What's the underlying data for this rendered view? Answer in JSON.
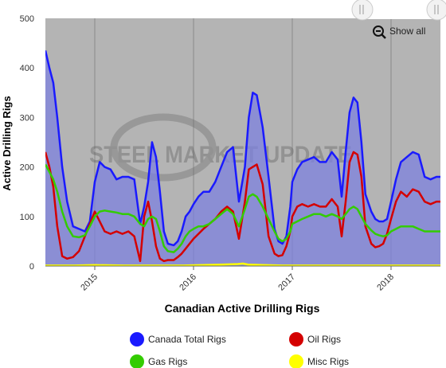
{
  "chart_data": {
    "type": "line",
    "title": "Canadian Active Drilling Rigs",
    "ylabel": "Active Drilling Rigs",
    "ylim": [
      0,
      500
    ],
    "yticks": [
      0,
      100,
      200,
      300,
      400,
      500
    ],
    "xlim": [
      2014.5,
      2018.5
    ],
    "xticks": [
      {
        "value": 2015,
        "label": "2015"
      },
      {
        "value": 2016,
        "label": "2016"
      },
      {
        "value": 2017,
        "label": "2017"
      },
      {
        "value": 2018,
        "label": "2018"
      }
    ],
    "grid": true,
    "legend_position": "bottom",
    "watermark": "STEEL MARKET UPDATE",
    "zoom_button_label": "Show all",
    "series": [
      {
        "name": "Canada Total Rigs",
        "color": "#1a1aff",
        "fill": true,
        "x": [
          2014.5,
          2014.54,
          2014.58,
          2014.62,
          2014.67,
          2014.72,
          2014.78,
          2014.84,
          2014.9,
          2014.95,
          2015.0,
          2015.05,
          2015.1,
          2015.16,
          2015.22,
          2015.28,
          2015.34,
          2015.4,
          2015.46,
          2015.5,
          2015.54,
          2015.58,
          2015.62,
          2015.66,
          2015.7,
          2015.74,
          2015.8,
          2015.84,
          2015.88,
          2015.92,
          2015.96,
          2016.0,
          2016.05,
          2016.1,
          2016.16,
          2016.22,
          2016.28,
          2016.34,
          2016.4,
          2016.46,
          2016.52,
          2016.56,
          2016.6,
          2016.64,
          2016.7,
          2016.76,
          2016.82,
          2016.86,
          2016.9,
          2016.94,
          2016.98,
          2017.0,
          2017.05,
          2017.1,
          2017.16,
          2017.22,
          2017.28,
          2017.34,
          2017.4,
          2017.46,
          2017.5,
          2017.54,
          2017.58,
          2017.62,
          2017.66,
          2017.7,
          2017.74,
          2017.8,
          2017.84,
          2017.88,
          2017.92,
          2017.96,
          2018.0,
          2018.05,
          2018.1,
          2018.16,
          2018.22,
          2018.28,
          2018.34,
          2018.4,
          2018.46,
          2018.5
        ],
        "values": [
          435,
          400,
          370,
          300,
          200,
          130,
          80,
          75,
          70,
          90,
          170,
          210,
          200,
          195,
          175,
          180,
          180,
          175,
          85,
          120,
          170,
          250,
          220,
          150,
          70,
          45,
          42,
          50,
          70,
          100,
          110,
          125,
          140,
          150,
          150,
          170,
          200,
          230,
          240,
          130,
          200,
          300,
          350,
          345,
          280,
          180,
          75,
          50,
          45,
          60,
          120,
          170,
          195,
          210,
          215,
          220,
          210,
          210,
          230,
          215,
          140,
          230,
          310,
          340,
          330,
          250,
          145,
          110,
          95,
          90,
          90,
          95,
          130,
          175,
          210,
          220,
          230,
          225,
          180,
          175,
          180,
          180
        ]
      },
      {
        "name": "Oil Rigs",
        "color": "#d40000",
        "fill": false,
        "x": [
          2014.5,
          2014.54,
          2014.58,
          2014.62,
          2014.67,
          2014.72,
          2014.78,
          2014.84,
          2014.9,
          2014.95,
          2015.0,
          2015.05,
          2015.1,
          2015.16,
          2015.22,
          2015.28,
          2015.34,
          2015.4,
          2015.46,
          2015.5,
          2015.54,
          2015.58,
          2015.62,
          2015.66,
          2015.7,
          2015.74,
          2015.8,
          2015.84,
          2015.88,
          2015.92,
          2015.96,
          2016.0,
          2016.05,
          2016.1,
          2016.16,
          2016.22,
          2016.28,
          2016.34,
          2016.4,
          2016.46,
          2016.52,
          2016.56,
          2016.6,
          2016.64,
          2016.7,
          2016.76,
          2016.82,
          2016.86,
          2016.9,
          2016.94,
          2016.98,
          2017.0,
          2017.05,
          2017.1,
          2017.16,
          2017.22,
          2017.28,
          2017.34,
          2017.4,
          2017.46,
          2017.5,
          2017.54,
          2017.58,
          2017.62,
          2017.66,
          2017.7,
          2017.74,
          2017.8,
          2017.84,
          2017.88,
          2017.92,
          2017.96,
          2018.0,
          2018.05,
          2018.1,
          2018.16,
          2018.22,
          2018.28,
          2018.34,
          2018.4,
          2018.46,
          2018.5
        ],
        "values": [
          230,
          200,
          160,
          80,
          20,
          15,
          18,
          30,
          60,
          85,
          110,
          90,
          70,
          65,
          70,
          65,
          70,
          60,
          10,
          100,
          130,
          90,
          40,
          15,
          10,
          12,
          12,
          18,
          25,
          35,
          45,
          55,
          65,
          75,
          85,
          95,
          110,
          120,
          110,
          55,
          130,
          195,
          200,
          205,
          165,
          60,
          25,
          20,
          22,
          40,
          70,
          100,
          120,
          125,
          120,
          125,
          120,
          120,
          135,
          120,
          60,
          130,
          210,
          230,
          225,
          180,
          80,
          45,
          38,
          40,
          45,
          65,
          95,
          130,
          150,
          140,
          155,
          150,
          130,
          125,
          130,
          130
        ]
      },
      {
        "name": "Gas Rigs",
        "color": "#33cc00",
        "fill": false,
        "x": [
          2014.5,
          2014.54,
          2014.58,
          2014.62,
          2014.67,
          2014.72,
          2014.78,
          2014.84,
          2014.9,
          2014.95,
          2015.0,
          2015.05,
          2015.1,
          2015.16,
          2015.22,
          2015.28,
          2015.34,
          2015.4,
          2015.46,
          2015.5,
          2015.54,
          2015.58,
          2015.62,
          2015.66,
          2015.7,
          2015.74,
          2015.8,
          2015.84,
          2015.88,
          2015.92,
          2015.96,
          2016.0,
          2016.05,
          2016.1,
          2016.16,
          2016.22,
          2016.28,
          2016.34,
          2016.4,
          2016.46,
          2016.52,
          2016.56,
          2016.6,
          2016.64,
          2016.7,
          2016.76,
          2016.82,
          2016.86,
          2016.9,
          2016.94,
          2016.98,
          2017.0,
          2017.05,
          2017.1,
          2017.16,
          2017.22,
          2017.28,
          2017.34,
          2017.4,
          2017.46,
          2017.5,
          2017.54,
          2017.58,
          2017.62,
          2017.66,
          2017.7,
          2017.74,
          2017.8,
          2017.84,
          2017.88,
          2017.92,
          2017.96,
          2018.0,
          2018.05,
          2018.1,
          2018.16,
          2018.22,
          2018.28,
          2018.34,
          2018.4,
          2018.46,
          2018.5
        ],
        "values": [
          205,
          190,
          175,
          150,
          110,
          80,
          60,
          58,
          62,
          80,
          100,
          110,
          112,
          110,
          108,
          105,
          105,
          100,
          85,
          80,
          95,
          100,
          95,
          70,
          40,
          30,
          28,
          35,
          45,
          60,
          70,
          75,
          80,
          80,
          85,
          95,
          105,
          115,
          105,
          80,
          115,
          140,
          145,
          140,
          120,
          95,
          70,
          55,
          50,
          55,
          70,
          85,
          90,
          95,
          100,
          105,
          105,
          100,
          105,
          100,
          95,
          105,
          115,
          120,
          115,
          100,
          85,
          72,
          65,
          62,
          60,
          62,
          70,
          75,
          80,
          80,
          80,
          75,
          70,
          70,
          70,
          70
        ]
      },
      {
        "name": "Misc Rigs",
        "color": "#ffff00",
        "fill": false,
        "x": [
          2014.5,
          2014.8,
          2015.0,
          2015.3,
          2015.6,
          2015.9,
          2016.1,
          2016.3,
          2016.45,
          2016.5,
          2016.55,
          2016.7,
          2016.9,
          2017.1,
          2017.3,
          2017.5,
          2017.7,
          2017.9,
          2018.1,
          2018.3,
          2018.5
        ],
        "values": [
          1,
          1,
          2,
          1,
          1,
          1,
          2,
          3,
          4,
          5,
          3,
          2,
          1,
          1,
          1,
          1,
          1,
          1,
          1,
          1,
          1
        ]
      }
    ]
  }
}
